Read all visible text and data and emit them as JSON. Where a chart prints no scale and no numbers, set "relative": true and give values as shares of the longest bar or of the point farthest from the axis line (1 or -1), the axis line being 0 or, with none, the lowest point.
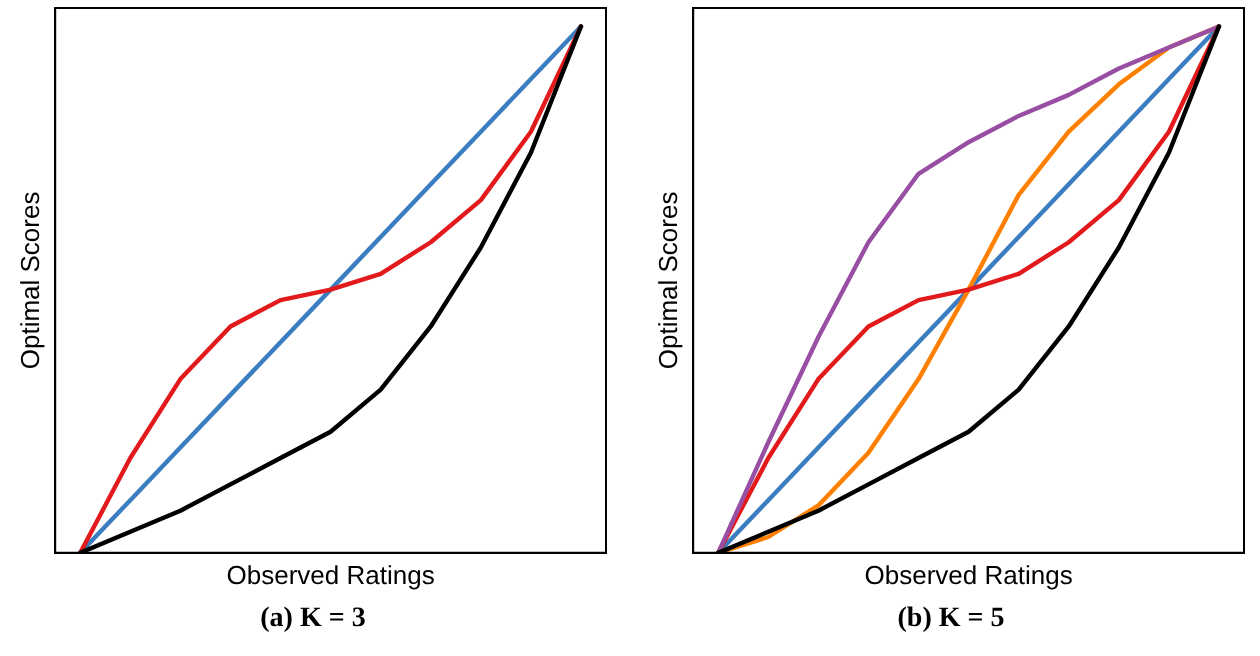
{
  "chart_data": [
    {
      "type": "line",
      "relative": true,
      "xlabel": "Observed Ratings",
      "ylabel": "Optimal Scores",
      "annotations": [
        "(a) K = 3"
      ],
      "tick_labels": false,
      "grid": false,
      "legend": false,
      "marker": "none",
      "line_style": "solid",
      "categories": [
        null,
        null,
        null,
        null,
        null,
        null,
        null,
        null,
        null,
        null,
        null
      ],
      "series": [
        {
          "color": "#000000",
          "values": [
            0,
            0.04,
            0.08,
            0.13,
            0.18,
            0.23,
            0.31,
            0.43,
            0.58,
            0.76,
            1
          ]
        },
        {
          "color": "#e31a1c",
          "values": [
            0,
            0.18,
            0.33,
            0.43,
            0.48,
            0.5,
            0.53,
            0.59,
            0.67,
            0.8,
            1
          ]
        },
        {
          "color": "#3a7dc0",
          "values": [
            0,
            0.1,
            0.2,
            0.3,
            0.4,
            0.5,
            0.6,
            0.7,
            0.8,
            0.9,
            1
          ]
        }
      ]
    },
    {
      "type": "line",
      "relative": true,
      "xlabel": "Observed Ratings",
      "ylabel": "Optimal Scores",
      "annotations": [
        "(b) K = 5"
      ],
      "tick_labels": false,
      "grid": false,
      "legend": false,
      "marker": "none",
      "line_style": "solid",
      "categories": [
        null,
        null,
        null,
        null,
        null,
        null,
        null,
        null,
        null,
        null,
        null
      ],
      "series": [
        {
          "color": "#000000",
          "values": [
            0,
            0.04,
            0.08,
            0.13,
            0.18,
            0.23,
            0.31,
            0.43,
            0.58,
            0.76,
            1
          ]
        },
        {
          "color": "#984ea3",
          "values": [
            0,
            0.21,
            0.41,
            0.59,
            0.72,
            0.78,
            0.83,
            0.87,
            0.92,
            0.96,
            1
          ]
        },
        {
          "color": "#e31a1c",
          "values": [
            0,
            0.18,
            0.33,
            0.43,
            0.48,
            0.5,
            0.53,
            0.59,
            0.67,
            0.8,
            1
          ]
        },
        {
          "color": "#ff7f00",
          "values": [
            0,
            0.03,
            0.09,
            0.19,
            0.33,
            0.5,
            0.68,
            0.8,
            0.89,
            0.96,
            1
          ]
        },
        {
          "color": "#3a7dc0",
          "values": [
            0,
            0.1,
            0.2,
            0.3,
            0.4,
            0.5,
            0.6,
            0.7,
            0.8,
            0.9,
            1
          ]
        }
      ]
    }
  ]
}
